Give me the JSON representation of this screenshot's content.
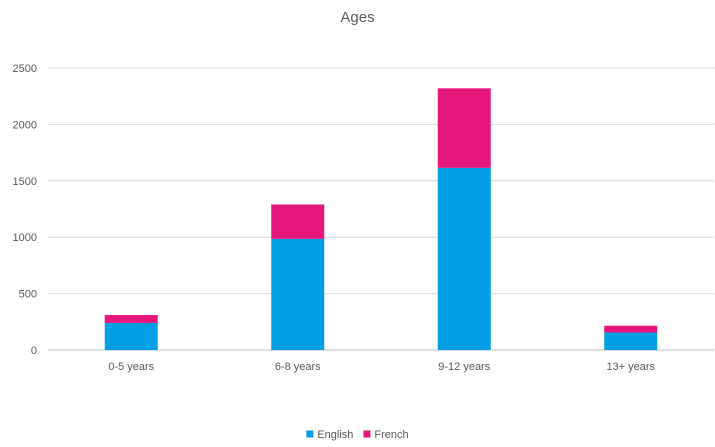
{
  "chart_data": {
    "type": "bar",
    "stacked": true,
    "title": "Ages",
    "xlabel": "",
    "ylabel": "",
    "categories": [
      "0-5 years",
      "6-8 years",
      "9-12 years",
      "13+ years"
    ],
    "series": [
      {
        "name": "English",
        "color": "#009fe3",
        "values": [
          240,
          985,
          1615,
          155
        ]
      },
      {
        "name": "French",
        "color": "#e6177a",
        "values": [
          70,
          305,
          705,
          60
        ]
      }
    ],
    "ylim": [
      0,
      2500
    ],
    "yticks": [
      0,
      500,
      1000,
      1500,
      2000,
      2500
    ],
    "grid": true,
    "legend_position": "bottom"
  }
}
